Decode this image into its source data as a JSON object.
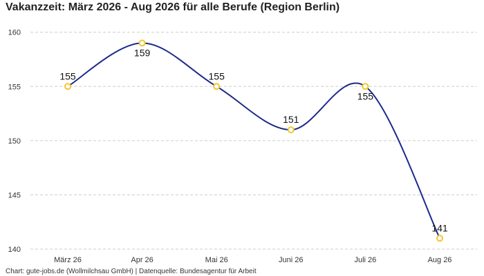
{
  "chart_data": {
    "type": "line",
    "title": "Vakanzzeit: März 2026 - Aug 2026 für alle Berufe (Region Berlin)",
    "categories": [
      "März 26",
      "Apr 26",
      "Mai 26",
      "Juni 26",
      "Juli 26",
      "Aug 26"
    ],
    "values": [
      155,
      159,
      155,
      151,
      155,
      141
    ],
    "ylim": [
      140,
      161
    ],
    "yticks": [
      140,
      145,
      150,
      155,
      160
    ],
    "grid": true,
    "line_color": "#1a2a8a",
    "marker_color": "#f2c62f"
  },
  "source": "Chart: gute-jobs.de (Wollmilchsau GmbH) | Datenquelle: Bundesagentur für Arbeit"
}
